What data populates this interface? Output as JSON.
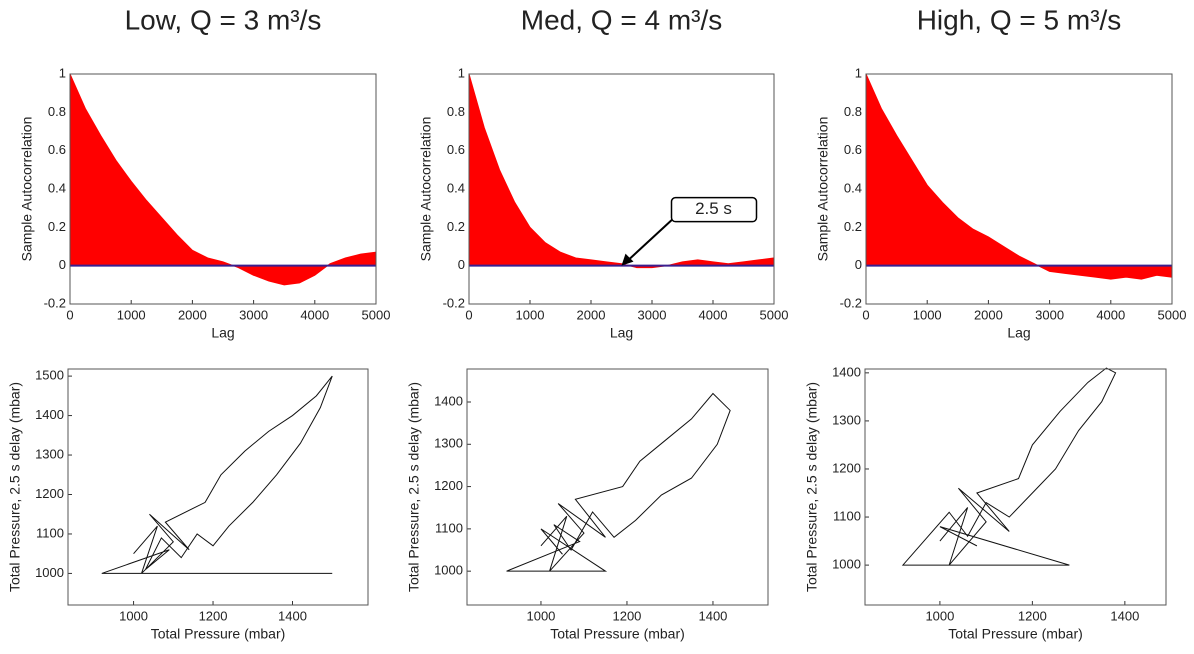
{
  "chart_data": [
    {
      "type": "area",
      "title": "Low, Q = 3 m³/s",
      "xlabel": "Lag",
      "ylabel": "Sample Autocorrelation",
      "color": "#ff0000",
      "baseline_color": "#3a1f8f",
      "x": [
        0,
        250,
        500,
        750,
        1000,
        1250,
        1500,
        1750,
        2000,
        2250,
        2500,
        2750,
        3000,
        3250,
        3500,
        3750,
        4000,
        4250,
        4500,
        4750,
        5000
      ],
      "values": [
        1,
        0.82,
        0.68,
        0.55,
        0.44,
        0.34,
        0.25,
        0.16,
        0.08,
        0.04,
        0.02,
        -0.01,
        -0.05,
        -0.08,
        -0.1,
        -0.09,
        -0.05,
        0.01,
        0.04,
        0.06,
        0.07
      ],
      "xlim": [
        0,
        5000
      ],
      "xticks": [
        0,
        1000,
        2000,
        3000,
        4000,
        5000
      ],
      "ylim": [
        -0.2,
        1
      ],
      "yticks": [
        -0.2,
        0,
        0.2,
        0.4,
        0.6,
        0.8,
        1
      ]
    },
    {
      "type": "area",
      "title": "Med, Q = 4 m³/s",
      "xlabel": "Lag",
      "ylabel": "Sample Autocorrelation",
      "color": "#ff0000",
      "baseline_color": "#3a1f8f",
      "x": [
        0,
        250,
        500,
        750,
        1000,
        1250,
        1500,
        1750,
        2000,
        2250,
        2500,
        2750,
        3000,
        3250,
        3500,
        3750,
        4000,
        4250,
        4500,
        4750,
        5000
      ],
      "values": [
        1,
        0.72,
        0.5,
        0.33,
        0.2,
        0.12,
        0.07,
        0.04,
        0.03,
        0.02,
        0.01,
        -0.01,
        -0.01,
        0,
        0.02,
        0.03,
        0.02,
        0.01,
        0.02,
        0.03,
        0.04
      ],
      "xlim": [
        0,
        5000
      ],
      "xticks": [
        0,
        1000,
        2000,
        3000,
        4000,
        5000
      ],
      "ylim": [
        -0.2,
        1
      ],
      "yticks": [
        -0.2,
        0,
        0.2,
        0.4,
        0.6,
        0.8,
        1
      ],
      "annotations": [
        "2.5 s"
      ]
    },
    {
      "type": "area",
      "title": "High, Q = 5 m³/s",
      "xlabel": "Lag",
      "ylabel": "Sample Autocorrelation",
      "color": "#ff0000",
      "baseline_color": "#3a1f8f",
      "x": [
        0,
        250,
        500,
        750,
        1000,
        1250,
        1500,
        1750,
        2000,
        2250,
        2500,
        2750,
        3000,
        3250,
        3500,
        3750,
        4000,
        4250,
        4500,
        4750,
        5000
      ],
      "values": [
        1,
        0.82,
        0.68,
        0.55,
        0.42,
        0.33,
        0.25,
        0.19,
        0.15,
        0.1,
        0.05,
        0.01,
        -0.03,
        -0.04,
        -0.05,
        -0.06,
        -0.07,
        -0.06,
        -0.07,
        -0.05,
        -0.06
      ],
      "xlim": [
        0,
        5000
      ],
      "xticks": [
        0,
        1000,
        2000,
        3000,
        4000,
        5000
      ],
      "ylim": [
        -0.2,
        1
      ],
      "yticks": [
        -0.2,
        0,
        0.2,
        0.4,
        0.6,
        0.8,
        1
      ]
    },
    {
      "type": "line",
      "xlabel": "Total Pressure (mbar)",
      "ylabel": "Total Pressure, 2.5 s delay (mbar)",
      "color": "#111111",
      "x": [
        1000,
        1060,
        1020,
        1100,
        1040,
        1140,
        1080,
        1180,
        1220,
        1280,
        1340,
        1400,
        1460,
        1500,
        1470,
        1420,
        1360,
        1300,
        1240,
        1200,
        1160,
        1120,
        1070,
        1030,
        1090,
        920,
        1500
      ],
      "values": [
        1050,
        1120,
        1000,
        1080,
        1150,
        1060,
        1130,
        1180,
        1250,
        1310,
        1360,
        1400,
        1450,
        1500,
        1420,
        1330,
        1250,
        1180,
        1120,
        1070,
        1100,
        1040,
        1090,
        1010,
        1060,
        1000,
        1000
      ],
      "xlim": [
        835,
        1590
      ],
      "xticks": [
        1000,
        1200,
        1400
      ],
      "ylim": [
        920,
        1518
      ],
      "yticks": [
        1000,
        1100,
        1200,
        1300,
        1400,
        1500
      ]
    },
    {
      "type": "line",
      "xlabel": "Total Pressure (mbar)",
      "ylabel": "Total Pressure, 2.5 s delay (mbar)",
      "color": "#111111",
      "x": [
        1000,
        1060,
        1020,
        1100,
        1040,
        1150,
        1080,
        1190,
        1230,
        1290,
        1350,
        1400,
        1440,
        1410,
        1350,
        1280,
        1220,
        1170,
        1120,
        1070,
        1030,
        1090,
        920,
        1150,
        1000,
        1050
      ],
      "values": [
        1060,
        1130,
        1000,
        1090,
        1160,
        1080,
        1170,
        1200,
        1260,
        1310,
        1360,
        1420,
        1380,
        1300,
        1220,
        1180,
        1120,
        1080,
        1140,
        1050,
        1110,
        1070,
        1000,
        1000,
        1100,
        1040
      ],
      "xlim": [
        828,
        1528
      ],
      "xticks": [
        1000,
        1200,
        1400
      ],
      "ylim": [
        920,
        1478
      ],
      "yticks": [
        1000,
        1100,
        1200,
        1300,
        1400
      ]
    },
    {
      "type": "line",
      "xlabel": "Total Pressure (mbar)",
      "ylabel": "Total Pressure, 2.5 s delay (mbar)",
      "color": "#111111",
      "x": [
        1000,
        1060,
        1020,
        1100,
        1040,
        1150,
        1080,
        1170,
        1200,
        1260,
        1320,
        1360,
        1380,
        1350,
        1300,
        1250,
        1200,
        1150,
        1100,
        1060,
        1020,
        920,
        1280,
        1000,
        1080
      ],
      "values": [
        1050,
        1120,
        1000,
        1090,
        1160,
        1070,
        1150,
        1180,
        1250,
        1320,
        1380,
        1410,
        1400,
        1340,
        1280,
        1200,
        1150,
        1100,
        1130,
        1060,
        1110,
        1000,
        1000,
        1080,
        1040
      ],
      "xlim": [
        838,
        1489
      ],
      "xticks": [
        1000,
        1200,
        1400
      ],
      "ylim": [
        917,
        1408
      ],
      "yticks": [
        1000,
        1100,
        1200,
        1300,
        1400
      ]
    }
  ]
}
